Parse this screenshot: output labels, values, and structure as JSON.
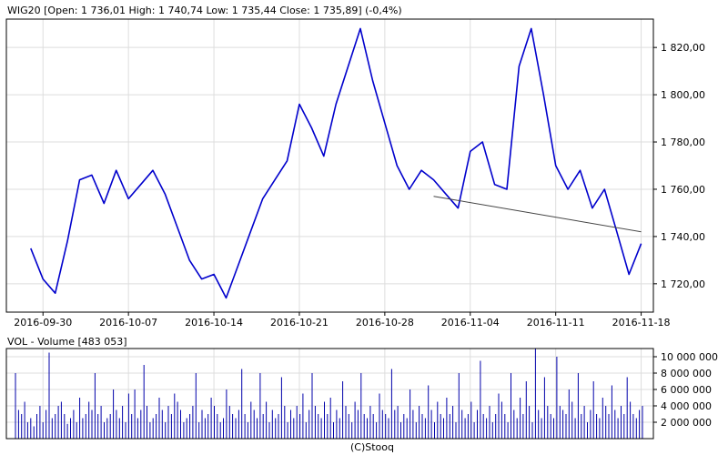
{
  "header": {
    "price_title": "WIG20 [Open: 1 736,01  High: 1 740,74  Low: 1 735,44  Close: 1 735,89] (-0,4%)",
    "volume_title": "VOL - Volume [483 053]",
    "footer": "(C)Stooq"
  },
  "colors": {
    "price_line": "#0000cc",
    "volume_bar": "#0000aa",
    "trendline": "#444444",
    "grid": "#dddddd",
    "frame": "#000000"
  },
  "chart_data": [
    {
      "type": "line",
      "title": "WIG20 [Open: 1 736,01  High: 1 740,74  Low: 1 735,44  Close: 1 735,89] (-0,4%)",
      "x_ticks": [
        "2016-09-30",
        "2016-10-07",
        "2016-10-14",
        "2016-10-21",
        "2016-10-28",
        "2016-11-04",
        "2016-11-11",
        "2016-11-18"
      ],
      "y_ticks": [
        "1 720,00",
        "1 740,00",
        "1 760,00",
        "1 780,00",
        "1 800,00",
        "1 820,00"
      ],
      "ylim": [
        1708,
        1832
      ],
      "grid": true,
      "series": [
        {
          "x": [
            "2016-09-29",
            "2016-09-30",
            "2016-10-01",
            "2016-10-02",
            "2016-10-03",
            "2016-10-04",
            "2016-10-05",
            "2016-10-06",
            "2016-10-07",
            "2016-10-08",
            "2016-10-09",
            "2016-10-10",
            "2016-10-11",
            "2016-10-12",
            "2016-10-13",
            "2016-10-14",
            "2016-10-15",
            "2016-10-16",
            "2016-10-17",
            "2016-10-18",
            "2016-10-19",
            "2016-10-20",
            "2016-10-21",
            "2016-10-22",
            "2016-10-23",
            "2016-10-24",
            "2016-10-25",
            "2016-10-26",
            "2016-10-27",
            "2016-10-28",
            "2016-10-29",
            "2016-10-30",
            "2016-10-31",
            "2016-11-01",
            "2016-11-02",
            "2016-11-03",
            "2016-11-04",
            "2016-11-05",
            "2016-11-06",
            "2016-11-07",
            "2016-11-08",
            "2016-11-09",
            "2016-11-10",
            "2016-11-11",
            "2016-11-12",
            "2016-11-13",
            "2016-11-14",
            "2016-11-15",
            "2016-11-16",
            "2016-11-17",
            "2016-11-18"
          ],
          "values": [
            1735,
            1722,
            1716,
            1738,
            1764,
            1766,
            1754,
            1768,
            1756,
            1762,
            1768,
            1758,
            1744,
            1730,
            1722,
            1724,
            1714,
            1728,
            1742,
            1756,
            1764,
            1772,
            1796,
            1786,
            1774,
            1796,
            1812,
            1828,
            1806,
            1788,
            1770,
            1760,
            1768,
            1764,
            1758,
            1752,
            1776,
            1780,
            1762,
            1760,
            1812,
            1828,
            1800,
            1770,
            1760,
            1768,
            1752,
            1760,
            1742,
            1724,
            1737
          ]
        }
      ],
      "trendline": {
        "from": [
          "2016-11-01",
          1757
        ],
        "to": [
          "2016-11-18",
          1742
        ]
      }
    },
    {
      "type": "bar",
      "title": "VOL - Volume [483 053]",
      "y_ticks": [
        "2 000 000",
        "4 000 000",
        "6 000 000",
        "8 000 000",
        "10 000 000"
      ],
      "ylim": [
        0,
        11000000
      ],
      "x_ticks": [
        "2016-09-30",
        "2016-10-07",
        "2016-10-14",
        "2016-10-21",
        "2016-10-28",
        "2016-11-04",
        "2016-11-11",
        "2016-11-18"
      ],
      "values": [
        8000000,
        3500000,
        3000000,
        4500000,
        2000000,
        2500000,
        1500000,
        3000000,
        4000000,
        2000000,
        3500000,
        10500000,
        2500000,
        3000000,
        4000000,
        4500000,
        3000000,
        1800000,
        2500000,
        3500000,
        2000000,
        5000000,
        2500000,
        3000000,
        4500000,
        3500000,
        8000000,
        3000000,
        4000000,
        2000000,
        2500000,
        3000000,
        6000000,
        3500000,
        2500000,
        4000000,
        2000000,
        5500000,
        3000000,
        6000000,
        2500000,
        3500000,
        9000000,
        4000000,
        2000000,
        2500000,
        3000000,
        5000000,
        3500000,
        2000000,
        4000000,
        3000000,
        5500000,
        4500000,
        3500000,
        2000000,
        2500000,
        3000000,
        4000000,
        8000000,
        2000000,
        3500000,
        2500000,
        3000000,
        5000000,
        4000000,
        3000000,
        2000000,
        2500000,
        6000000,
        4000000,
        3000000,
        2500000,
        3500000,
        8500000,
        3000000,
        2000000,
        4500000,
        3500000,
        2500000,
        8000000,
        3000000,
        4500000,
        2000000,
        3500000,
        2500000,
        3000000,
        7500000,
        4000000,
        2000000,
        3500000,
        2500000,
        4000000,
        3000000,
        5500000,
        2000000,
        3500000,
        8000000,
        4000000,
        3000000,
        2500000,
        4500000,
        3000000,
        5000000,
        2000000,
        3500000,
        2500000,
        7000000,
        4000000,
        3000000,
        2000000,
        4500000,
        3500000,
        8000000,
        3000000,
        2500000,
        4000000,
        3000000,
        2000000,
        5500000,
        3500000,
        3000000,
        2500000,
        8500000,
        3500000,
        4000000,
        2000000,
        3000000,
        2500000,
        6000000,
        3500000,
        2000000,
        4000000,
        3000000,
        2500000,
        6500000,
        3500000,
        2000000,
        4500000,
        3000000,
        2500000,
        5000000,
        3000000,
        4000000,
        2000000,
        8000000,
        3500000,
        2500000,
        3000000,
        4500000,
        2000000,
        3500000,
        9500000,
        3000000,
        2500000,
        4000000,
        2000000,
        3000000,
        5500000,
        4500000,
        3000000,
        2000000,
        8000000,
        3500000,
        2500000,
        5000000,
        3000000,
        7000000,
        4000000,
        2000000,
        11000000,
        3500000,
        2500000,
        7500000,
        4000000,
        3000000,
        2500000,
        10000000,
        4000000,
        3500000,
        3000000,
        6000000,
        4500000,
        2500000,
        8000000,
        3000000,
        4000000,
        2000000,
        3500000,
        7000000,
        3000000,
        2500000,
        5000000,
        4000000,
        3000000,
        6500000,
        3500000,
        2500000,
        4000000,
        3000000,
        7500000,
        4500000,
        3000000,
        2500000,
        3500000,
        4000000
      ]
    }
  ]
}
